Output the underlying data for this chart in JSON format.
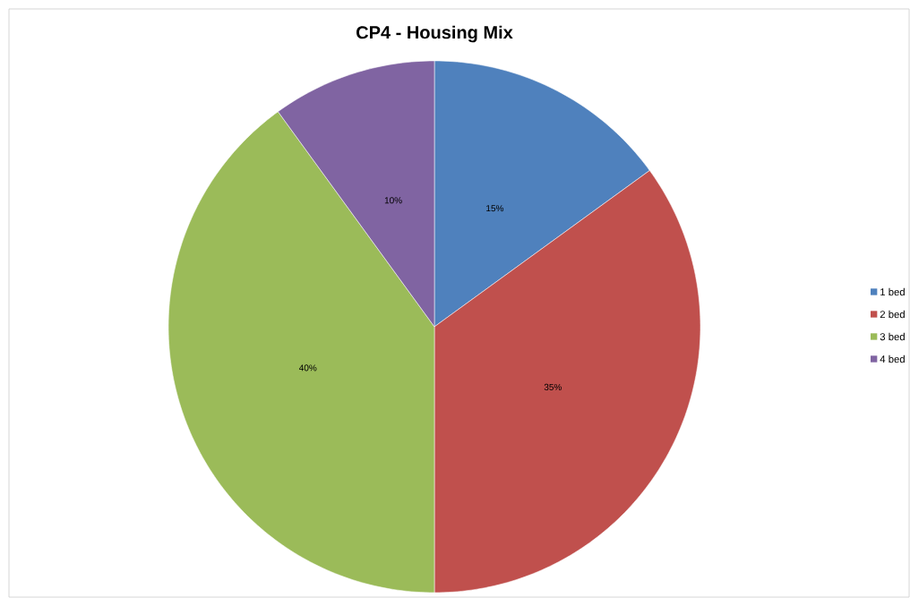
{
  "chart_data": {
    "type": "pie",
    "title": "CP4 - Housing Mix",
    "categories": [
      "1 bed",
      "2 bed",
      "3 bed",
      "4 bed"
    ],
    "values": [
      15,
      35,
      40,
      10
    ],
    "colors": [
      "#4f81bd",
      "#c0504d",
      "#9bbb59",
      "#8064a2"
    ],
    "value_labels": [
      "15%",
      "35%",
      "40%",
      "10%"
    ],
    "legend": "right"
  }
}
